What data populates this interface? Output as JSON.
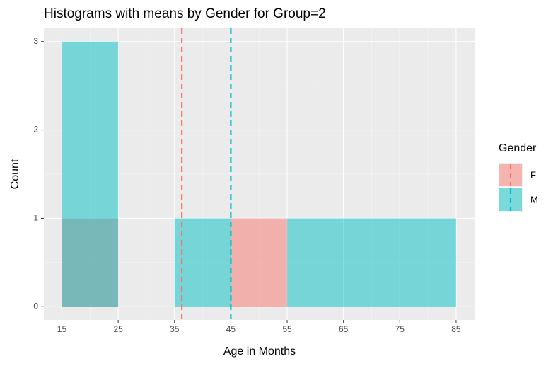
{
  "chart_data": {
    "type": "histogram",
    "title": "Histograms with means by Gender for Group=2",
    "x_label": "Age in Months",
    "y_label": "Count",
    "bins": [
      15,
      25,
      35,
      45,
      55,
      65,
      75,
      85
    ],
    "series": [
      {
        "name": "F",
        "color": "#F8766D",
        "values": [
          1,
          0,
          0,
          1,
          0,
          0,
          0
        ],
        "mean": 36.3
      },
      {
        "name": "M",
        "color": "#00BFC4",
        "values": [
          3,
          0,
          1,
          0,
          1,
          1,
          1
        ],
        "mean": 45
      }
    ],
    "legend_title": "Gender",
    "xlim": [
      11.8,
      88.4
    ],
    "ylim": [
      -0.15,
      3.15
    ],
    "xticks": [
      15,
      25,
      35,
      45,
      55,
      65,
      75,
      85
    ],
    "yticks": [
      0,
      1,
      2,
      3
    ],
    "x_minor_ticks": [
      20,
      30,
      40,
      50,
      60,
      70,
      80
    ],
    "y_minor_ticks": [
      0.5,
      1.5,
      2.5
    ],
    "grid": true,
    "legend": "right"
  }
}
